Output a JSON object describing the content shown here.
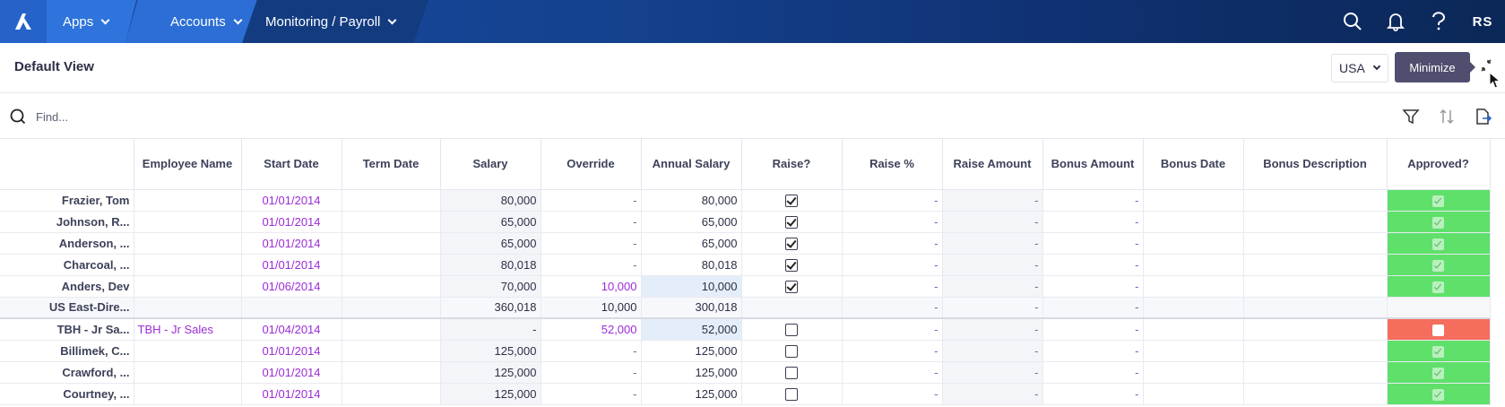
{
  "nav": {
    "logo_icon": "anaplan-logo-icon",
    "apps_label": "Apps",
    "accounts_label": "Accounts",
    "breadcrumb_label": "Monitoring / Payroll",
    "user_initials": "RS"
  },
  "view": {
    "title": "Default View",
    "country_selected": "USA",
    "tooltip": "Minimize"
  },
  "search": {
    "placeholder": "Find..."
  },
  "columns": [
    "Employee Name",
    "Start Date",
    "Term Date",
    "Salary",
    "Override",
    "Annual Salary",
    "Raise?",
    "Raise %",
    "Raise Amount",
    "Bonus Amount",
    "Bonus Date",
    "Bonus Description",
    "Approved?"
  ],
  "rows": [
    {
      "name": "Frazier, Tom",
      "employee": "",
      "start": "01/01/2014",
      "term": "",
      "salary": "80,000",
      "override": "-",
      "annual": "80,000",
      "raise": true,
      "raise_pct": "-",
      "raise_amt": "-",
      "bonus_amt": "-",
      "bonus_date": "",
      "bonus_desc": "",
      "approved": "yes"
    },
    {
      "name": "Johnson, R...",
      "employee": "",
      "start": "01/01/2014",
      "term": "",
      "salary": "65,000",
      "override": "-",
      "annual": "65,000",
      "raise": true,
      "raise_pct": "-",
      "raise_amt": "-",
      "bonus_amt": "-",
      "bonus_date": "",
      "bonus_desc": "",
      "approved": "yes"
    },
    {
      "name": "Anderson, ...",
      "employee": "",
      "start": "01/01/2014",
      "term": "",
      "salary": "65,000",
      "override": "-",
      "annual": "65,000",
      "raise": true,
      "raise_pct": "-",
      "raise_amt": "-",
      "bonus_amt": "-",
      "bonus_date": "",
      "bonus_desc": "",
      "approved": "yes"
    },
    {
      "name": "Charcoal, ...",
      "employee": "",
      "start": "01/01/2014",
      "term": "",
      "salary": "80,018",
      "override": "-",
      "annual": "80,018",
      "raise": true,
      "raise_pct": "-",
      "raise_amt": "-",
      "bonus_amt": "-",
      "bonus_date": "",
      "bonus_desc": "",
      "approved": "yes"
    },
    {
      "name": "Anders, Dev",
      "employee": "",
      "start": "01/06/2014",
      "term": "",
      "salary": "70,000",
      "override": "10,000",
      "annual": "10,000",
      "raise": true,
      "raise_pct": "-",
      "raise_amt": "-",
      "bonus_amt": "-",
      "bonus_date": "",
      "bonus_desc": "",
      "approved": "yes"
    },
    {
      "name": "US East-Dire...",
      "employee": "",
      "start": "",
      "term": "",
      "salary": "360,018",
      "override": "10,000",
      "annual": "300,018",
      "raise": null,
      "raise_pct": "-",
      "raise_amt": "-",
      "bonus_amt": "-",
      "bonus_date": "",
      "bonus_desc": "",
      "approved": "none",
      "total": true
    },
    {
      "name": "TBH - Jr Sa...",
      "employee": "TBH - Jr Sales",
      "start": "01/04/2014",
      "term": "",
      "salary": "-",
      "override": "52,000",
      "annual": "52,000",
      "raise": false,
      "raise_pct": "-",
      "raise_amt": "-",
      "bonus_amt": "-",
      "bonus_date": "",
      "bonus_desc": "",
      "approved": "no"
    },
    {
      "name": "Billimek, C...",
      "employee": "",
      "start": "01/01/2014",
      "term": "",
      "salary": "125,000",
      "override": "-",
      "annual": "125,000",
      "raise": false,
      "raise_pct": "-",
      "raise_amt": "-",
      "bonus_amt": "-",
      "bonus_date": "",
      "bonus_desc": "",
      "approved": "yes"
    },
    {
      "name": "Crawford, ...",
      "employee": "",
      "start": "01/01/2014",
      "term": "",
      "salary": "125,000",
      "override": "-",
      "annual": "125,000",
      "raise": false,
      "raise_pct": "-",
      "raise_amt": "-",
      "bonus_amt": "-",
      "bonus_date": "",
      "bonus_desc": "",
      "approved": "yes"
    },
    {
      "name": "Courtney, ...",
      "employee": "",
      "start": "01/01/2014",
      "term": "",
      "salary": "125,000",
      "override": "-",
      "annual": "125,000",
      "raise": false,
      "raise_pct": "-",
      "raise_amt": "-",
      "bonus_amt": "-",
      "bonus_date": "",
      "bonus_desc": "",
      "approved": "yes"
    }
  ],
  "colors": {
    "approved": "#5fe06b",
    "rejected": "#f46d5d",
    "link": "#9c2bd8",
    "nav_dark": "#0c2858",
    "nav_accent": "#2e74dc"
  }
}
